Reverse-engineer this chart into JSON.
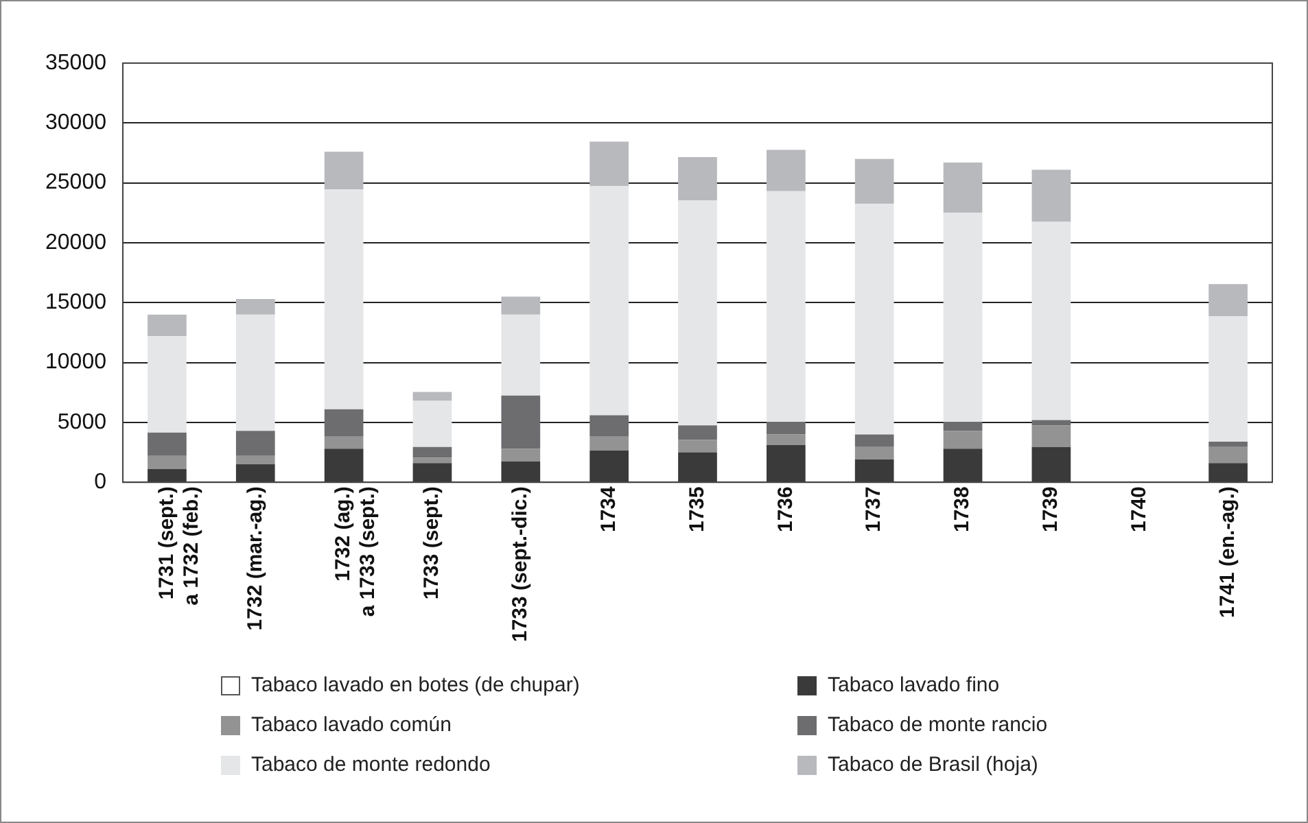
{
  "chart_data": {
    "type": "bar",
    "stacked": true,
    "categories": [
      "1731 (sept.)\na 1732 (feb.)",
      "1732 (mar.-ag.)",
      "1732 (ag.)\na 1733 (sept.)",
      "1733 (sept.)",
      "1733 (sept.-dic.)",
      "1734",
      "1735",
      "1736",
      "1737",
      "1738",
      "1739",
      "1740",
      "1741 (en.-ag.)"
    ],
    "series": [
      {
        "name": "Tabaco lavado en botes (de chupar)",
        "color": "#ffffff",
        "values": [
          null,
          null,
          null,
          null,
          null,
          null,
          null,
          null,
          null,
          null,
          null,
          null,
          null
        ]
      },
      {
        "name": "Tabaco lavado fino",
        "color": "#3a3a3a",
        "values": [
          1100,
          1500,
          2800,
          1600,
          1750,
          2650,
          2500,
          3100,
          1900,
          2800,
          2950,
          null,
          1600
        ]
      },
      {
        "name": "Tabaco lavado común",
        "color": "#939393",
        "values": [
          1100,
          700,
          1050,
          450,
          1050,
          1200,
          1050,
          900,
          1050,
          1500,
          1800,
          null,
          1350
        ]
      },
      {
        "name": "Tabaco de monte rancio",
        "color": "#6d6d70",
        "values": [
          1950,
          2100,
          2250,
          900,
          4450,
          1750,
          1200,
          1050,
          1050,
          750,
          450,
          null,
          450
        ]
      },
      {
        "name": "Tabaco de monte redondo",
        "color": "#e5e6e8",
        "values": [
          8050,
          9700,
          18350,
          3850,
          6750,
          19150,
          18800,
          19250,
          19250,
          17450,
          16550,
          null,
          10450
        ]
      },
      {
        "name": "Tabaco de Brasil (hoja)",
        "color": "#b8b9bc",
        "values": [
          1800,
          1300,
          3150,
          750,
          1500,
          3700,
          3600,
          3450,
          3750,
          4200,
          4350,
          null,
          2700
        ]
      }
    ],
    "ylim": [
      0,
      35000
    ],
    "yticks": [
      0,
      5000,
      10000,
      15000,
      20000,
      25000,
      30000,
      35000
    ],
    "grid": "y",
    "legend": "bottom"
  }
}
